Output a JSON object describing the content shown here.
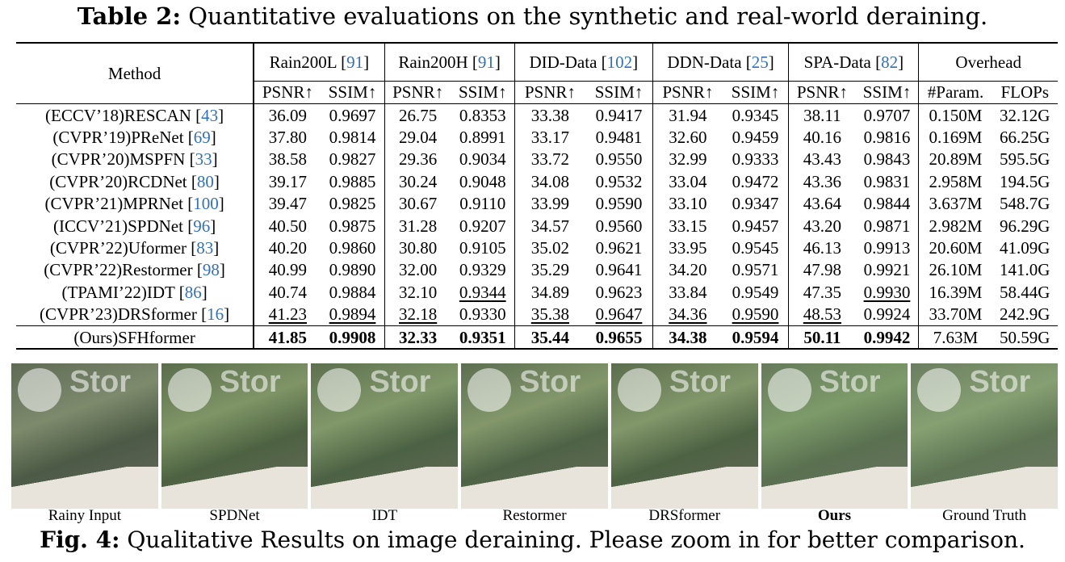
{
  "caption_top": {
    "label": "Table 2:",
    "text": " Quantitative evaluations on the synthetic and real-world deraining."
  },
  "table": {
    "method_header": "Method",
    "datasets": [
      {
        "name": "Rain200L",
        "ref": "91"
      },
      {
        "name": "Rain200H",
        "ref": "91"
      },
      {
        "name": "DID-Data",
        "ref": "102"
      },
      {
        "name": "DDN-Data",
        "ref": "25"
      },
      {
        "name": "SPA-Data",
        "ref": "82"
      }
    ],
    "overhead_header": "Overhead",
    "psnr": "PSNR↑",
    "ssim": "SSIM↑",
    "param": "#Param.",
    "flops": "FLOPs",
    "rows": [
      {
        "method": "(ECCV’18)RESCAN ",
        "ref": "43",
        "vals": [
          "36.09",
          "0.9697",
          "26.75",
          "0.8353",
          "33.38",
          "0.9417",
          "31.94",
          "0.9345",
          "38.11",
          "0.9707",
          "0.150M",
          "32.12G"
        ],
        "ul": []
      },
      {
        "method": "(CVPR’19)PReNet ",
        "ref": "69",
        "vals": [
          "37.80",
          "0.9814",
          "29.04",
          "0.8991",
          "33.17",
          "0.9481",
          "32.60",
          "0.9459",
          "40.16",
          "0.9816",
          "0.169M",
          "66.25G"
        ],
        "ul": []
      },
      {
        "method": "(CVPR’20)MSPFN ",
        "ref": "33",
        "vals": [
          "38.58",
          "0.9827",
          "29.36",
          "0.9034",
          "33.72",
          "0.9550",
          "32.99",
          "0.9333",
          "43.43",
          "0.9843",
          "20.89M",
          "595.5G"
        ],
        "ul": []
      },
      {
        "method": "(CVPR’20)RCDNet ",
        "ref": "80",
        "vals": [
          "39.17",
          "0.9885",
          "30.24",
          "0.9048",
          "34.08",
          "0.9532",
          "33.04",
          "0.9472",
          "43.36",
          "0.9831",
          "2.958M",
          "194.5G"
        ],
        "ul": []
      },
      {
        "method": "(CVPR’21)MPRNet ",
        "ref": "100",
        "vals": [
          "39.47",
          "0.9825",
          "30.67",
          "0.9110",
          "33.99",
          "0.9590",
          "33.10",
          "0.9347",
          "43.64",
          "0.9844",
          "3.637M",
          "548.7G"
        ],
        "ul": []
      },
      {
        "method": "(ICCV’21)SPDNet ",
        "ref": "96",
        "vals": [
          "40.50",
          "0.9875",
          "31.28",
          "0.9207",
          "34.57",
          "0.9560",
          "33.15",
          "0.9457",
          "43.20",
          "0.9871",
          "2.982M",
          "96.29G"
        ],
        "ul": []
      },
      {
        "method": "(CVPR’22)Uformer ",
        "ref": "83",
        "vals": [
          "40.20",
          "0.9860",
          "30.80",
          "0.9105",
          "35.02",
          "0.9621",
          "33.95",
          "0.9545",
          "46.13",
          "0.9913",
          "20.60M",
          "41.09G"
        ],
        "ul": []
      },
      {
        "method": "(CVPR’22)Restormer ",
        "ref": "98",
        "vals": [
          "40.99",
          "0.9890",
          "32.00",
          "0.9329",
          "35.29",
          "0.9641",
          "34.20",
          "0.9571",
          "47.98",
          "0.9921",
          "26.10M",
          "141.0G"
        ],
        "ul": []
      },
      {
        "method": "(TPAMI’22)IDT ",
        "ref": "86",
        "vals": [
          "40.74",
          "0.9884",
          "32.10",
          "0.9344",
          "34.89",
          "0.9623",
          "33.84",
          "0.9549",
          "47.35",
          "0.9930",
          "16.39M",
          "58.44G"
        ],
        "ul": [
          3,
          9
        ]
      },
      {
        "method": "(CVPR’23)DRSformer ",
        "ref": "16",
        "vals": [
          "41.23",
          "0.9894",
          "32.18",
          "0.9330",
          "35.38",
          "0.9647",
          "34.36",
          "0.9590",
          "48.53",
          "0.9924",
          "33.70M",
          "242.9G"
        ],
        "ul": [
          0,
          1,
          2,
          4,
          5,
          6,
          7,
          8
        ]
      }
    ],
    "ours": {
      "method": "(Ours)SFHformer",
      "vals": [
        "41.85",
        "0.9908",
        "32.33",
        "0.9351",
        "35.44",
        "0.9655",
        "34.38",
        "0.9594",
        "50.11",
        "0.9942",
        "7.63M",
        "50.59G"
      ]
    }
  },
  "figure": {
    "watermark": "Stor",
    "labels": [
      "Rainy Input",
      "SPDNet",
      "IDT",
      "Restormer",
      "DRSformer",
      "Ours",
      "Ground Truth"
    ],
    "bold_label_index": 5
  },
  "caption_bot": {
    "label": "Fig. 4:",
    "text": " Qualitative Results on image deraining. Please zoom in for better comparison."
  }
}
